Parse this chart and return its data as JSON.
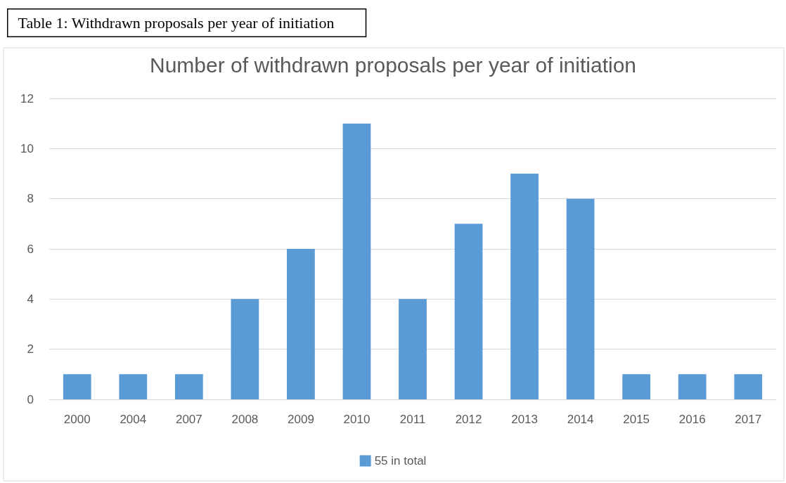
{
  "chart_data": {
    "type": "bar",
    "title": "Number of withdrawn proposals per year of initiation",
    "annotations": [
      "Table 1: Withdrawn proposals per year of initiation"
    ],
    "categories": [
      "2000",
      "2004",
      "2007",
      "2008",
      "2009",
      "2010",
      "2011",
      "2012",
      "2013",
      "2014",
      "2015",
      "2016",
      "2017"
    ],
    "series": [
      {
        "name": "55 in total",
        "color": "#5b9bd5",
        "values": [
          1,
          1,
          1,
          4,
          6,
          11,
          4,
          7,
          9,
          8,
          1,
          1,
          1
        ]
      }
    ],
    "ylim": [
      0,
      12
    ],
    "yticks": [
      0,
      2,
      4,
      6,
      8,
      10,
      12
    ],
    "grid": "y",
    "legend": "bottom"
  }
}
